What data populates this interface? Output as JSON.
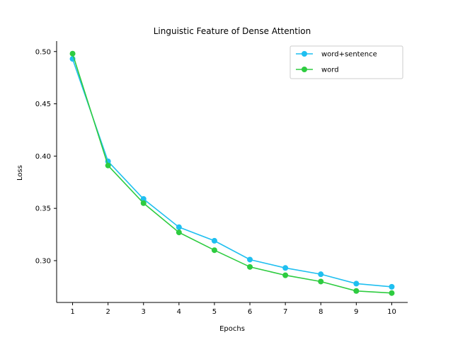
{
  "chart_data": {
    "type": "line",
    "title": "Linguistic Feature of Dense Attention",
    "xlabel": "Epochs",
    "ylabel": "Loss",
    "x": [
      1,
      2,
      3,
      4,
      5,
      6,
      7,
      8,
      9,
      10
    ],
    "xticks": [
      "1",
      "2",
      "3",
      "4",
      "5",
      "6",
      "7",
      "8",
      "9",
      "10"
    ],
    "yticks": [
      "0.30",
      "0.35",
      "0.40",
      "0.45",
      "0.50"
    ],
    "ylim": [
      0.26,
      0.51
    ],
    "xlim": [
      0.55,
      10.45
    ],
    "grid": false,
    "legend_position": "top-right",
    "series": [
      {
        "name": "word+sentence",
        "color": "#1fbff0",
        "values": [
          0.493,
          0.395,
          0.359,
          0.332,
          0.319,
          0.301,
          0.293,
          0.287,
          0.278,
          0.275
        ]
      },
      {
        "name": "word",
        "color": "#2ecc40",
        "values": [
          0.498,
          0.391,
          0.355,
          0.327,
          0.31,
          0.294,
          0.286,
          0.28,
          0.271,
          0.269
        ]
      }
    ]
  }
}
